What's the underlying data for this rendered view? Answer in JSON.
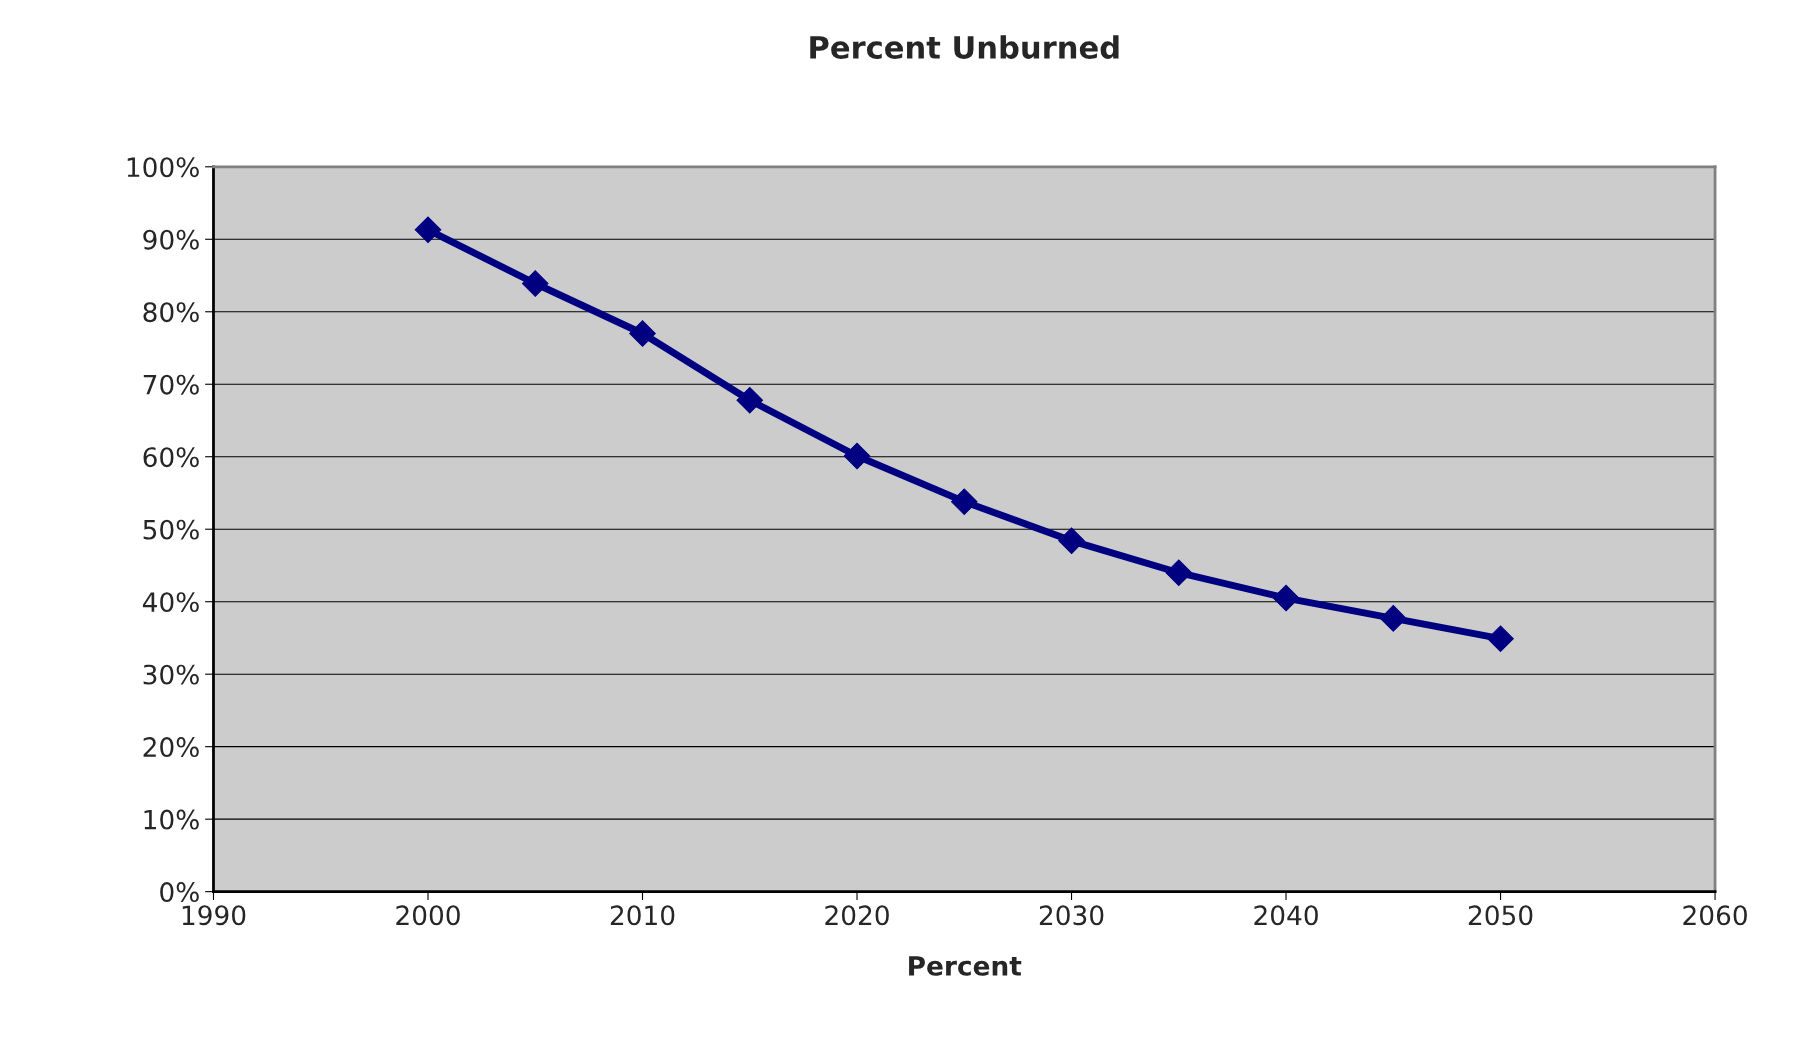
{
  "chart_data": {
    "type": "line",
    "title": "Percent Unburned",
    "xlabel": "Percent",
    "x": [
      2000,
      2005,
      2010,
      2015,
      2020,
      2025,
      2030,
      2035,
      2040,
      2045,
      2050
    ],
    "series": [
      {
        "color": "#000080",
        "values": [
          91.3,
          83.9,
          77.0,
          67.8,
          60.1,
          53.8,
          48.4,
          44.0,
          40.5,
          37.7,
          34.9
        ]
      }
    ],
    "xlim": [
      1990,
      2060
    ],
    "xticks": [
      1990,
      2000,
      2010,
      2020,
      2030,
      2040,
      2050,
      2060
    ],
    "ylim": [
      0,
      100
    ],
    "yticks": [
      {
        "value": 0,
        "label": "0%"
      },
      {
        "value": 10,
        "label": "10%"
      },
      {
        "value": 20,
        "label": "20%"
      },
      {
        "value": 30,
        "label": "30%"
      },
      {
        "value": 40,
        "label": "40%"
      },
      {
        "value": 50,
        "label": "50%"
      },
      {
        "value": 60,
        "label": "60%"
      },
      {
        "value": 70,
        "label": "70%"
      },
      {
        "value": 80,
        "label": "80%"
      },
      {
        "value": 90,
        "label": "90%"
      },
      {
        "value": 100,
        "label": "100%"
      }
    ],
    "grid": "y",
    "marker": "diamond",
    "line_style": "solid"
  }
}
